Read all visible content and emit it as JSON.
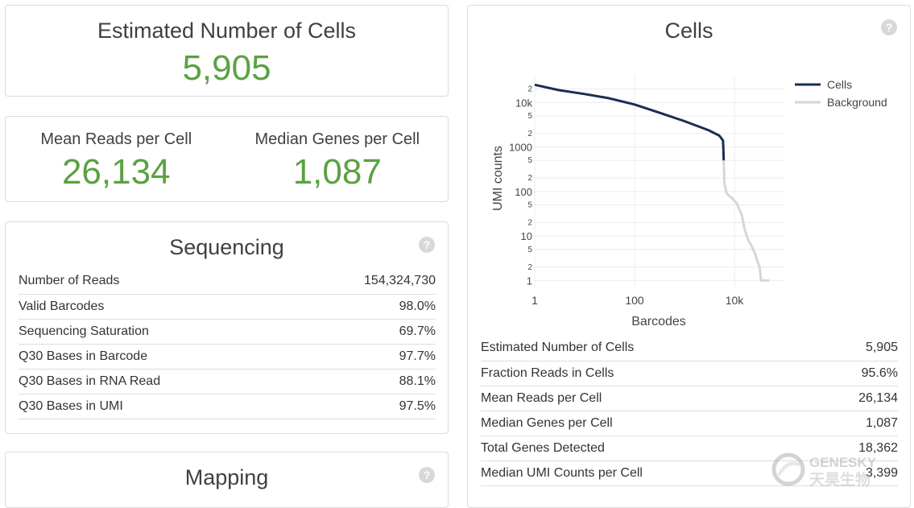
{
  "summary": {
    "estimated_cells_label": "Estimated Number of Cells",
    "estimated_cells_value": "5,905",
    "mean_reads_label": "Mean Reads per Cell",
    "mean_reads_value": "26,134",
    "median_genes_label": "Median Genes per Cell",
    "median_genes_value": "1,087"
  },
  "sequencing": {
    "title": "Sequencing",
    "help_icon": "?",
    "rows": [
      {
        "label": "Number of Reads",
        "value": "154,324,730"
      },
      {
        "label": "Valid Barcodes",
        "value": "98.0%"
      },
      {
        "label": "Sequencing Saturation",
        "value": "69.7%"
      },
      {
        "label": "Q30 Bases in Barcode",
        "value": "97.7%"
      },
      {
        "label": "Q30 Bases in RNA Read",
        "value": "88.1%"
      },
      {
        "label": "Q30 Bases in UMI",
        "value": "97.5%"
      }
    ]
  },
  "mapping": {
    "title": "Mapping",
    "help_icon": "?"
  },
  "cells": {
    "title": "Cells",
    "help_icon": "?",
    "rows": [
      {
        "label": "Estimated Number of Cells",
        "value": "5,905"
      },
      {
        "label": "Fraction Reads in Cells",
        "value": "95.6%"
      },
      {
        "label": "Mean Reads per Cell",
        "value": "26,134"
      },
      {
        "label": "Median Genes per Cell",
        "value": "1,087"
      },
      {
        "label": "Total Genes Detected",
        "value": "18,362"
      },
      {
        "label": "Median UMI Counts per Cell",
        "value": "3,399"
      }
    ]
  },
  "chart_data": {
    "type": "line",
    "xlabel": "Barcodes",
    "ylabel": "UMI counts",
    "x_scale": "log",
    "y_scale": "log",
    "xlim": [
      1,
      100000
    ],
    "ylim": [
      0.7,
      40000
    ],
    "x_tick_labels": [
      {
        "v": 1,
        "t": "1"
      },
      {
        "v": 100,
        "t": "100"
      },
      {
        "v": 10000,
        "t": "10k"
      }
    ],
    "y_tick_labels": [
      {
        "v": 1,
        "t": "1"
      },
      {
        "v": 2,
        "t": "2"
      },
      {
        "v": 5,
        "t": "5"
      },
      {
        "v": 10,
        "t": "10"
      },
      {
        "v": 20,
        "t": "2"
      },
      {
        "v": 50,
        "t": "5"
      },
      {
        "v": 100,
        "t": "100"
      },
      {
        "v": 200,
        "t": "2"
      },
      {
        "v": 500,
        "t": "5"
      },
      {
        "v": 1000,
        "t": "1000"
      },
      {
        "v": 2000,
        "t": "2"
      },
      {
        "v": 5000,
        "t": "5"
      },
      {
        "v": 10000,
        "t": "10k"
      },
      {
        "v": 20000,
        "t": "2"
      }
    ],
    "legend_position": "top-right",
    "grid": true,
    "series": [
      {
        "name": "Cells",
        "color": "#1a2e52",
        "points": [
          [
            1,
            25000
          ],
          [
            3,
            19000
          ],
          [
            10,
            15500
          ],
          [
            30,
            12500
          ],
          [
            100,
            9000
          ],
          [
            300,
            6000
          ],
          [
            1000,
            3800
          ],
          [
            3000,
            2400
          ],
          [
            5000,
            1800
          ],
          [
            5905,
            1400
          ],
          [
            6000,
            1000
          ],
          [
            6100,
            500
          ]
        ]
      },
      {
        "name": "Background",
        "color": "#d6d6d6",
        "points": [
          [
            6100,
            500
          ],
          [
            6300,
            150
          ],
          [
            7000,
            90
          ],
          [
            9000,
            70
          ],
          [
            11000,
            55
          ],
          [
            14000,
            30
          ],
          [
            16000,
            14
          ],
          [
            19000,
            8
          ],
          [
            22000,
            6
          ],
          [
            26000,
            4
          ],
          [
            28000,
            3
          ],
          [
            32000,
            2
          ],
          [
            34000,
            1
          ],
          [
            50000,
            1
          ]
        ]
      }
    ]
  }
}
